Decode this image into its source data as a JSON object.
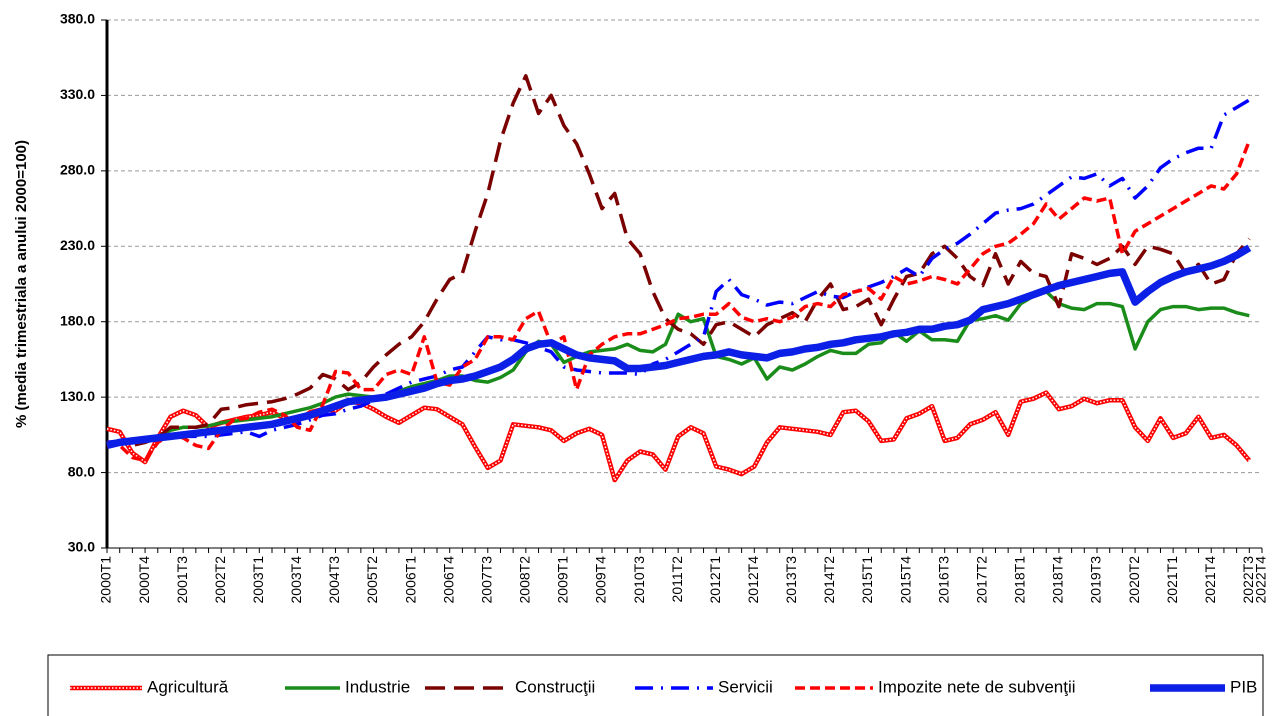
{
  "chart_data": {
    "type": "line",
    "y_label": "% (media trimestriala a anului 2000=100)",
    "categories": [
      "2000T1",
      null,
      null,
      "2000T4",
      null,
      null,
      "2001T3",
      null,
      null,
      "2002T2",
      null,
      null,
      "2003T1",
      null,
      null,
      "2003T4",
      null,
      null,
      "2004T3",
      null,
      null,
      "2005T2",
      null,
      null,
      "2006T1",
      null,
      null,
      "2006T4",
      null,
      null,
      "2007T3",
      null,
      null,
      "2008T2",
      null,
      null,
      "2009T1",
      null,
      null,
      "2009T4",
      null,
      null,
      "2010T3",
      null,
      null,
      "2011T2",
      null,
      null,
      "2012T1",
      null,
      null,
      "2012T4",
      null,
      null,
      "2013T3",
      null,
      null,
      "2014T2",
      null,
      null,
      "2015T1",
      null,
      null,
      "2015T4",
      null,
      null,
      "2016T3",
      null,
      null,
      "2017T2",
      null,
      null,
      "2018T1",
      null,
      null,
      "2018T4",
      null,
      null,
      "2019T3",
      null,
      null,
      "2020T2",
      null,
      null,
      "2021T1",
      null,
      null,
      "2021T4",
      null,
      null,
      "2022T3",
      "2022T4"
    ],
    "series": [
      {
        "name": "Agricultură",
        "color": "#ff0000",
        "style": "dotted",
        "values": [
          109,
          107,
          93,
          87,
          103,
          117,
          121,
          118,
          110,
          113,
          115,
          117,
          118,
          120,
          116,
          114,
          120,
          122,
          121,
          127,
          126,
          122,
          117,
          113,
          118,
          123,
          122,
          117,
          112,
          97,
          83,
          88,
          112,
          111,
          110,
          108,
          101,
          106,
          109,
          105,
          75,
          88,
          94,
          92,
          82,
          104,
          110,
          106,
          84,
          82,
          79,
          84,
          100,
          110,
          109,
          108,
          107,
          105,
          120,
          121,
          114,
          101,
          102,
          116,
          119,
          124,
          101,
          103,
          112,
          115,
          120,
          105,
          127,
          129,
          133,
          122,
          124,
          129,
          126,
          128,
          128,
          110,
          101,
          116,
          103,
          106,
          117,
          103,
          105,
          98,
          88,
          null
        ]
      },
      {
        "name": "Industrie",
        "color": "#1a8c1a",
        "style": "solid",
        "values": [
          98,
          100,
          100,
          100,
          104,
          108,
          110,
          110,
          111,
          113,
          114,
          115,
          116,
          117,
          119,
          121,
          123,
          126,
          130,
          132,
          131,
          130,
          131,
          134,
          137,
          139,
          141,
          144,
          144,
          141,
          140,
          143,
          148,
          160,
          167,
          165,
          153,
          157,
          160,
          161,
          162,
          165,
          161,
          160,
          165,
          185,
          180,
          182,
          157,
          155,
          152,
          156,
          142,
          150,
          148,
          152,
          157,
          161,
          159,
          159,
          165,
          166,
          173,
          167,
          174,
          168,
          168,
          167,
          181,
          182,
          184,
          181,
          192,
          197,
          200,
          192,
          189,
          188,
          192,
          192,
          190,
          162,
          180,
          188,
          190,
          190,
          188,
          189,
          189,
          186,
          184,
          null
        ]
      },
      {
        "name": "Construcţii",
        "color": "#7b0000",
        "style": "long-dash",
        "values": [
          97,
          100,
          98,
          100,
          103,
          110,
          110,
          110,
          112,
          122,
          123,
          125,
          126,
          127,
          129,
          132,
          136,
          145,
          142,
          135,
          140,
          150,
          158,
          165,
          170,
          180,
          195,
          208,
          212,
          240,
          265,
          300,
          325,
          343,
          318,
          330,
          310,
          298,
          278,
          255,
          265,
          235,
          225,
          200,
          182,
          175,
          172,
          165,
          178,
          180,
          175,
          170,
          178,
          182,
          186,
          180,
          195,
          205,
          188,
          190,
          195,
          178,
          195,
          210,
          212,
          225,
          230,
          222,
          210,
          204,
          225,
          205,
          220,
          212,
          210,
          190,
          225,
          222,
          218,
          222,
          230,
          218,
          230,
          228,
          225,
          212,
          218,
          205,
          208,
          225,
          235,
          null
        ]
      },
      {
        "name": "Servicii",
        "color": "#0000ff",
        "style": "dash-dot",
        "values": [
          100,
          101,
          101,
          102,
          103,
          103,
          104,
          104,
          104,
          105,
          106,
          107,
          104,
          108,
          110,
          112,
          115,
          118,
          119,
          122,
          124,
          128,
          132,
          136,
          140,
          142,
          144,
          148,
          150,
          160,
          170,
          168,
          168,
          166,
          163,
          160,
          150,
          148,
          147,
          146,
          146,
          146,
          145,
          152,
          155,
          160,
          165,
          170,
          200,
          208,
          198,
          195,
          191,
          193,
          192,
          196,
          200,
          197,
          196,
          200,
          203,
          206,
          210,
          215,
          210,
          222,
          228,
          232,
          238,
          245,
          252,
          254,
          255,
          258,
          264,
          270,
          276,
          275,
          278,
          270,
          275,
          262,
          270,
          282,
          288,
          292,
          295,
          295,
          317,
          322,
          327,
          null
        ]
      },
      {
        "name": "Impozite nete de subvenţii",
        "color": "#ff0000",
        "style": "dash",
        "values": [
          100,
          98,
          90,
          88,
          100,
          105,
          103,
          98,
          96,
          108,
          115,
          116,
          120,
          122,
          118,
          110,
          108,
          125,
          147,
          146,
          135,
          135,
          145,
          148,
          145,
          170,
          140,
          138,
          150,
          155,
          170,
          170,
          168,
          182,
          187,
          165,
          170,
          135,
          158,
          165,
          170,
          172,
          172,
          175,
          178,
          182,
          183,
          185,
          185,
          192,
          183,
          180,
          182,
          180,
          183,
          190,
          192,
          190,
          198,
          200,
          202,
          195,
          210,
          205,
          207,
          210,
          208,
          205,
          215,
          225,
          230,
          232,
          238,
          245,
          258,
          248,
          255,
          262,
          260,
          262,
          225,
          240,
          245,
          250,
          255,
          260,
          265,
          270,
          268,
          278,
          300,
          null
        ]
      },
      {
        "name": "PIB",
        "color": "#0b1fe6",
        "style": "thick",
        "values": [
          98,
          100,
          101,
          102,
          103,
          104,
          105,
          106,
          107,
          108,
          109,
          110,
          111,
          112,
          114,
          116,
          118,
          121,
          124,
          127,
          128,
          129,
          130,
          132,
          134,
          136,
          139,
          141,
          142,
          144,
          147,
          150,
          155,
          162,
          165,
          166,
          162,
          158,
          156,
          155,
          154,
          149,
          149,
          150,
          151,
          153,
          155,
          157,
          158,
          160,
          158,
          157,
          156,
          159,
          160,
          162,
          163,
          165,
          166,
          168,
          169,
          170,
          172,
          173,
          175,
          175,
          177,
          178,
          181,
          188,
          190,
          192,
          195,
          198,
          201,
          204,
          206,
          208,
          210,
          212,
          213,
          193,
          200,
          206,
          210,
          213,
          215,
          217,
          220,
          224,
          229,
          null
        ]
      }
    ],
    "ylim": [
      30,
      380
    ],
    "yticks": [
      {
        "value": 30,
        "label": "30.0"
      },
      {
        "value": 80,
        "label": "80.0"
      },
      {
        "value": 130,
        "label": "130.0"
      },
      {
        "value": 180,
        "label": "180.0"
      },
      {
        "value": 230,
        "label": "230.0"
      },
      {
        "value": 280,
        "label": "280.0"
      },
      {
        "value": 330,
        "label": "330.0"
      },
      {
        "value": 380,
        "label": "380.0"
      }
    ],
    "grid": true,
    "legend": "bottom"
  }
}
